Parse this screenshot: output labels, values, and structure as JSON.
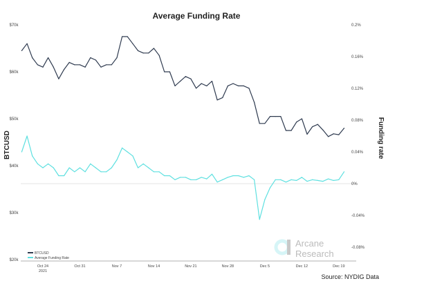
{
  "chart_data": {
    "type": "line",
    "title": "Average Funding Rate",
    "ylabel_left": "BTCUSD",
    "ylabel_right": "Funding rate",
    "source": "Source: NYDIG Data",
    "watermark": "Arcane Research",
    "legend_position": "bottom-left",
    "grid": false,
    "x_ticks": [
      "Oct 24",
      "Oct 31",
      "Nov 7",
      "Nov 14",
      "Nov 21",
      "Nov 28",
      "Dec 5",
      "Dec 12",
      "Dec 19"
    ],
    "x_year_label": "2021",
    "x_start": "2021-10-20",
    "x_end": "2021-12-20",
    "y_left_ticks": [
      "$70k",
      "$60k",
      "$50k",
      "$40k",
      "$30k",
      "$20k"
    ],
    "y_left_range": [
      20000,
      70000
    ],
    "y_right_ticks": [
      "0.2%",
      "0.16%",
      "0.12%",
      "0.08%",
      "0.04%",
      "0%",
      "-0.04%",
      "-0.08%"
    ],
    "y_right_range": [
      -0.0959,
      0.2
    ],
    "series": [
      {
        "name": "BTCUSD",
        "axis": "left",
        "color": "#2e3a4f",
        "values": [
          64500,
          66000,
          63000,
          61500,
          61000,
          63000,
          61000,
          58500,
          60500,
          62000,
          61500,
          61500,
          61000,
          63000,
          62500,
          61000,
          61500,
          61500,
          63000,
          67500,
          67500,
          66000,
          64500,
          64000,
          64000,
          65000,
          63500,
          60000,
          60000,
          57000,
          58000,
          59000,
          58500,
          56500,
          57500,
          57000,
          58000,
          54000,
          54500,
          57000,
          57500,
          57000,
          57000,
          56500,
          53500,
          49000,
          49000,
          50500,
          50500,
          50500,
          47500,
          47500,
          49300,
          50000,
          46700,
          48300,
          48800,
          47600,
          46200,
          46800,
          46600,
          48000
        ]
      },
      {
        "name": "Average Funding Rate",
        "axis": "right",
        "color": "#5ee0e0",
        "values": [
          0.04,
          0.06,
          0.035,
          0.025,
          0.02,
          0.025,
          0.02,
          0.01,
          0.01,
          0.02,
          0.015,
          0.02,
          0.015,
          0.025,
          0.02,
          0.015,
          0.015,
          0.02,
          0.03,
          0.045,
          0.04,
          0.035,
          0.02,
          0.025,
          0.02,
          0.015,
          0.015,
          0.01,
          0.01,
          0.005,
          0.008,
          0.008,
          0.005,
          0.005,
          0.008,
          0.006,
          0.012,
          0.002,
          0.005,
          0.008,
          0.01,
          0.01,
          0.008,
          0.01,
          0.005,
          -0.045,
          -0.02,
          -0.005,
          0.005,
          0.005,
          0.002,
          0.005,
          0.004,
          0.008,
          0.003,
          0.005,
          0.004,
          0.003,
          0.006,
          0.004,
          0.005,
          0.015
        ]
      }
    ]
  }
}
